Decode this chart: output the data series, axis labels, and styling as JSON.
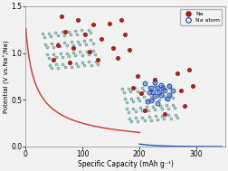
{
  "xlabel": "Specific Capacity (mAh g⁻¹)",
  "ylabel": "Potential (V vs.Na⁺/Na)",
  "xlim": [
    0,
    350
  ],
  "ylim": [
    0,
    1.5
  ],
  "yticks": [
    0.0,
    0.5,
    1.0,
    1.5
  ],
  "xticks": [
    0,
    100,
    200,
    300
  ],
  "red_curve_color": "#e03030",
  "blue_curve_color": "#2858c8",
  "bg_color": "#f2f2f2",
  "teal_face": "#9ec8c0",
  "teal_edge": "#4a8880",
  "na_red_face": "#c01818",
  "na_red_edge": "#800000",
  "na_blue_edge": "#1840a8",
  "na_blue_face": "#6090e8"
}
